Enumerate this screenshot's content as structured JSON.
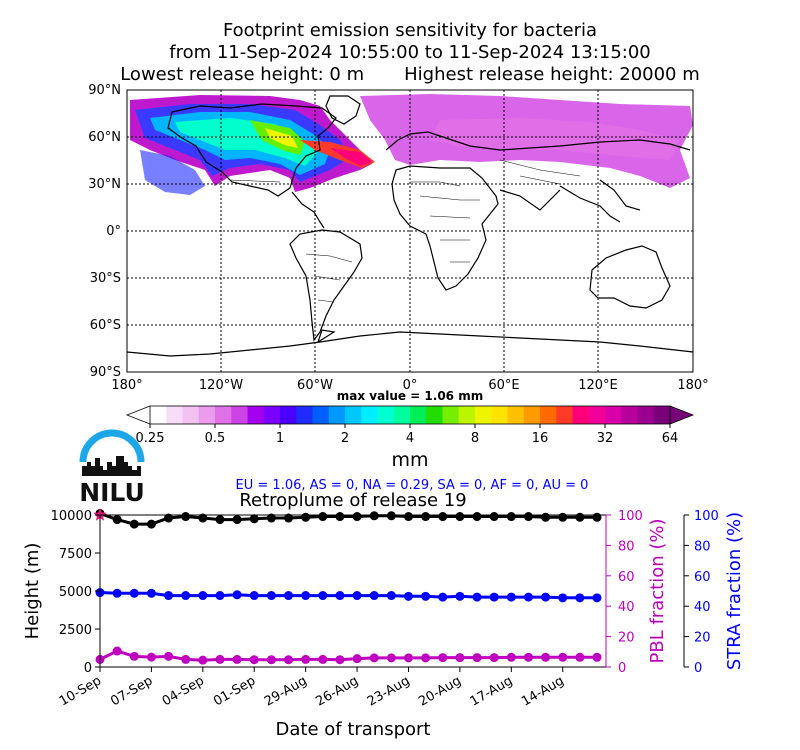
{
  "header": {
    "title_line1": "Footprint emission sensitivity for bacteria",
    "title_line2": "from 11-Sep-2024 10:55:00 to 11-Sep-2024 13:15:00",
    "lowest_release": "Lowest release height: 0 m",
    "highest_release": "Highest release height: 20000 m"
  },
  "map": {
    "lat_labels": [
      "90°N",
      "60°N",
      "30°N",
      "0°",
      "30°S",
      "60°S",
      "90°S"
    ],
    "lon_labels": [
      "180°",
      "120°W",
      "60°W",
      "0°",
      "60°E",
      "120°E",
      "180°"
    ],
    "max_value_label": "max value = 1.06 mm"
  },
  "colorbar": {
    "unit": "mm",
    "ticks": [
      "0.25",
      "0.5",
      "1",
      "2",
      "4",
      "8",
      "16",
      "32",
      "64"
    ],
    "colors": [
      "#ffffff",
      "#f7ddf7",
      "#f2c2f2",
      "#ec9cec",
      "#e070e6",
      "#cc44e6",
      "#a400ee",
      "#7a00ff",
      "#4a00ff",
      "#1f2bff",
      "#0060ff",
      "#0099ff",
      "#00c8ff",
      "#00eeff",
      "#00ffd0",
      "#00ff9c",
      "#00ee55",
      "#22dd00",
      "#77ee00",
      "#bbf500",
      "#eef500",
      "#ffe400",
      "#ffc000",
      "#ff9a00",
      "#ff6a00",
      "#ff3a2a",
      "#ff007a",
      "#f2009a",
      "#d800a8",
      "#b8009c",
      "#9a0090",
      "#780078"
    ]
  },
  "logo": {
    "text": "NILU",
    "colors": {
      "arc": "#1ea7e8",
      "text": "#111111"
    }
  },
  "region_summary": "EU = 1.06,  AS = 0,  NA = 0.29,  SA = 0,  AF = 0,  AU = 0",
  "chart_data": {
    "type": "line",
    "title": "Retroplume of release 19",
    "xlabel": "Date of transport",
    "ylabel": "Height (m)",
    "ylabel_right1": "PBL fraction (%)",
    "ylabel_right2": "STRA fraction (%)",
    "x_ticks": [
      "10-Sep",
      "07-Sep",
      "04-Sep",
      "01-Sep",
      "29-Aug",
      "26-Aug",
      "23-Aug",
      "20-Aug",
      "17-Aug",
      "14-Aug"
    ],
    "x_days_before_release": [
      0,
      1,
      2,
      3,
      4,
      5,
      6,
      7,
      8,
      9,
      10,
      11,
      12,
      13,
      14,
      15,
      16,
      17,
      18,
      19,
      20,
      21,
      22,
      23,
      24,
      25,
      26,
      27,
      28,
      29
    ],
    "ylim": [
      0,
      10000
    ],
    "y_ticks": [
      0,
      2500,
      5000,
      7500,
      10000
    ],
    "right_ylim": [
      0,
      100
    ],
    "right_ticks": [
      0,
      20,
      40,
      60,
      80,
      100
    ],
    "release_marker_height": 10000,
    "series": [
      {
        "axis": "left",
        "color": "#000000",
        "values": [
          10100,
          9700,
          9400,
          9400,
          9800,
          9900,
          9800,
          9700,
          9700,
          9750,
          9800,
          9800,
          9850,
          9900,
          9900,
          9900,
          9950,
          9950,
          9900,
          9900,
          9900,
          9900,
          9900,
          9900,
          9900,
          9900,
          9850,
          9850,
          9850,
          9850
        ]
      },
      {
        "axis": "left",
        "color": "#0000ff",
        "values": [
          4900,
          4850,
          4850,
          4850,
          4700,
          4700,
          4700,
          4700,
          4750,
          4700,
          4700,
          4700,
          4700,
          4700,
          4700,
          4700,
          4700,
          4700,
          4650,
          4650,
          4600,
          4650,
          4600,
          4600,
          4600,
          4600,
          4600,
          4550,
          4550,
          4550
        ]
      },
      {
        "axis": "left",
        "color": "#c000c0",
        "values": [
          500,
          1050,
          700,
          650,
          700,
          500,
          450,
          500,
          500,
          480,
          480,
          480,
          500,
          500,
          480,
          550,
          600,
          600,
          600,
          600,
          620,
          620,
          620,
          620,
          640,
          640,
          640,
          640,
          640,
          640
        ]
      }
    ]
  }
}
